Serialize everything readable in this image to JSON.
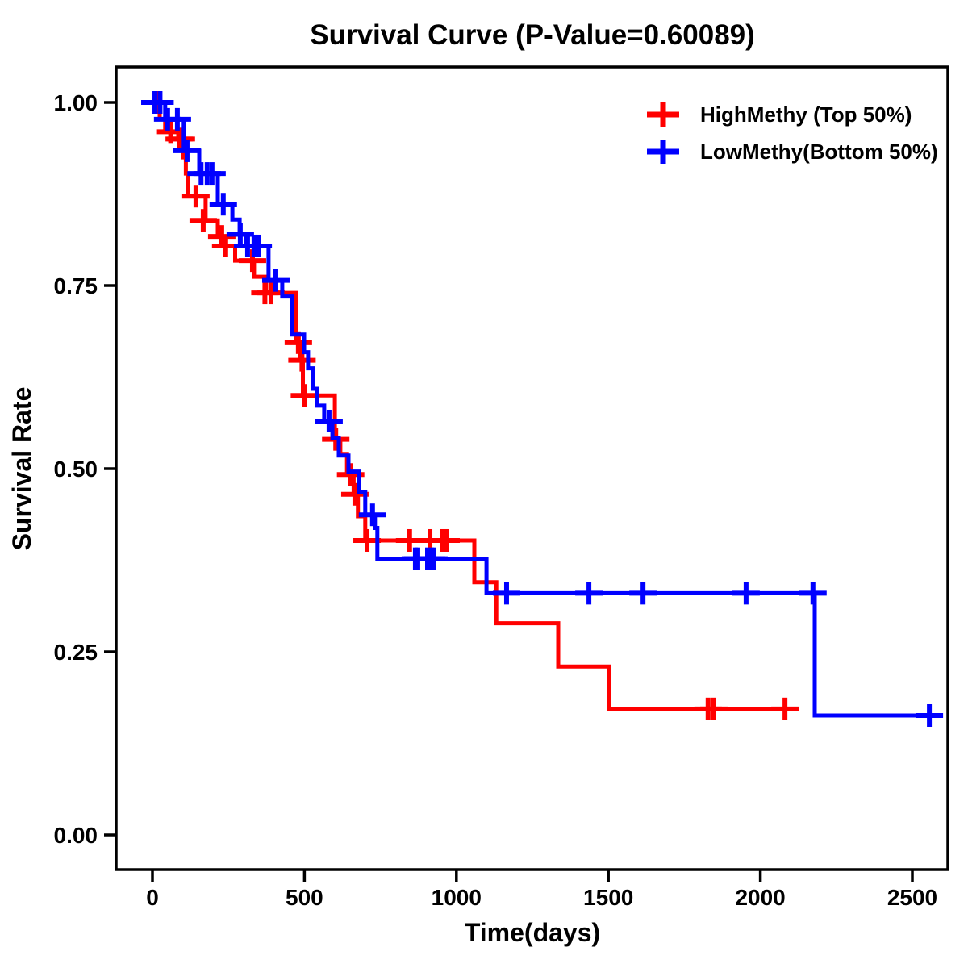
{
  "title": "Survival Curve (P-Value=0.60089)",
  "p_value": "0.60089",
  "chart_data": {
    "type": "line",
    "subtype": "kaplan-meier-step-survival",
    "title": "Survival Curve (P-Value=0.60089)",
    "xlabel": "Time(days)",
    "ylabel": "Survival Rate",
    "xlim": [
      0,
      2500
    ],
    "ylim": [
      0.0,
      1.0
    ],
    "x_ticks": [
      0,
      500,
      1000,
      1500,
      2000,
      2500
    ],
    "x_tick_labels": [
      "0",
      "500",
      "1000",
      "1500",
      "2000",
      "2500"
    ],
    "y_ticks": [
      0.0,
      0.25,
      0.5,
      0.75,
      1.0
    ],
    "y_tick_labels": [
      "0.00",
      "0.25",
      "0.50",
      "0.75",
      "1.00"
    ],
    "grid": false,
    "legend_position": "top-right",
    "censor_marker": "+",
    "series": [
      {
        "name": "HighMethy (Top 50%)",
        "color": "#ff0000",
        "end_time": 2118,
        "steps": [
          [
            0,
            1.0
          ],
          [
            24,
            0.977
          ],
          [
            42,
            0.96
          ],
          [
            85,
            0.95
          ],
          [
            100,
            0.925
          ],
          [
            110,
            0.903
          ],
          [
            117,
            0.872
          ],
          [
            175,
            0.839
          ],
          [
            215,
            0.817
          ],
          [
            241,
            0.804
          ],
          [
            272,
            0.784
          ],
          [
            334,
            0.762
          ],
          [
            374,
            0.74
          ],
          [
            472,
            0.672
          ],
          [
            486,
            0.648
          ],
          [
            495,
            0.6
          ],
          [
            600,
            0.54
          ],
          [
            618,
            0.52
          ],
          [
            640,
            0.492
          ],
          [
            662,
            0.465
          ],
          [
            676,
            0.435
          ],
          [
            700,
            0.402
          ],
          [
            1059,
            0.345
          ],
          [
            1131,
            0.289
          ],
          [
            1335,
            0.23
          ],
          [
            1502,
            0.172
          ]
        ],
        "censors": [
          [
            20,
            1.0
          ],
          [
            60,
            0.96
          ],
          [
            88,
            0.95
          ],
          [
            95,
            0.95
          ],
          [
            143,
            0.872
          ],
          [
            167,
            0.839
          ],
          [
            228,
            0.817
          ],
          [
            241,
            0.804
          ],
          [
            329,
            0.784
          ],
          [
            370,
            0.74
          ],
          [
            390,
            0.74
          ],
          [
            480,
            0.672
          ],
          [
            492,
            0.648
          ],
          [
            500,
            0.6
          ],
          [
            603,
            0.54
          ],
          [
            652,
            0.492
          ],
          [
            666,
            0.465
          ],
          [
            706,
            0.402
          ],
          [
            846,
            0.402
          ],
          [
            913,
            0.402
          ],
          [
            953,
            0.402
          ],
          [
            966,
            0.402
          ],
          [
            1828,
            0.172
          ],
          [
            1847,
            0.172
          ],
          [
            2081,
            0.172
          ]
        ]
      },
      {
        "name": "LowMethy(Bottom 50%)",
        "color": "#0000ff",
        "end_time": 2590,
        "steps": [
          [
            0,
            1.0
          ],
          [
            42,
            0.977
          ],
          [
            103,
            0.934
          ],
          [
            154,
            0.903
          ],
          [
            215,
            0.861
          ],
          [
            263,
            0.84
          ],
          [
            287,
            0.82
          ],
          [
            308,
            0.804
          ],
          [
            382,
            0.757
          ],
          [
            427,
            0.735
          ],
          [
            459,
            0.683
          ],
          [
            499,
            0.659
          ],
          [
            512,
            0.637
          ],
          [
            528,
            0.609
          ],
          [
            541,
            0.586
          ],
          [
            565,
            0.565
          ],
          [
            592,
            0.542
          ],
          [
            613,
            0.518
          ],
          [
            645,
            0.496
          ],
          [
            679,
            0.468
          ],
          [
            700,
            0.437
          ],
          [
            732,
            0.419
          ],
          [
            740,
            0.377
          ],
          [
            1099,
            0.33
          ],
          [
            2179,
            0.163
          ]
        ],
        "censors": [
          [
            8,
            1.0
          ],
          [
            25,
            1.0
          ],
          [
            50,
            0.977
          ],
          [
            82,
            0.977
          ],
          [
            114,
            0.934
          ],
          [
            160,
            0.903
          ],
          [
            180,
            0.903
          ],
          [
            196,
            0.903
          ],
          [
            233,
            0.861
          ],
          [
            289,
            0.82
          ],
          [
            313,
            0.804
          ],
          [
            334,
            0.804
          ],
          [
            348,
            0.804
          ],
          [
            406,
            0.757
          ],
          [
            581,
            0.565
          ],
          [
            724,
            0.437
          ],
          [
            865,
            0.377
          ],
          [
            873,
            0.377
          ],
          [
            905,
            0.377
          ],
          [
            918,
            0.377
          ],
          [
            926,
            0.377
          ],
          [
            1165,
            0.33
          ],
          [
            1436,
            0.33
          ],
          [
            1614,
            0.33
          ],
          [
            1953,
            0.33
          ],
          [
            2173,
            0.33
          ],
          [
            2556,
            0.163
          ]
        ]
      }
    ]
  }
}
